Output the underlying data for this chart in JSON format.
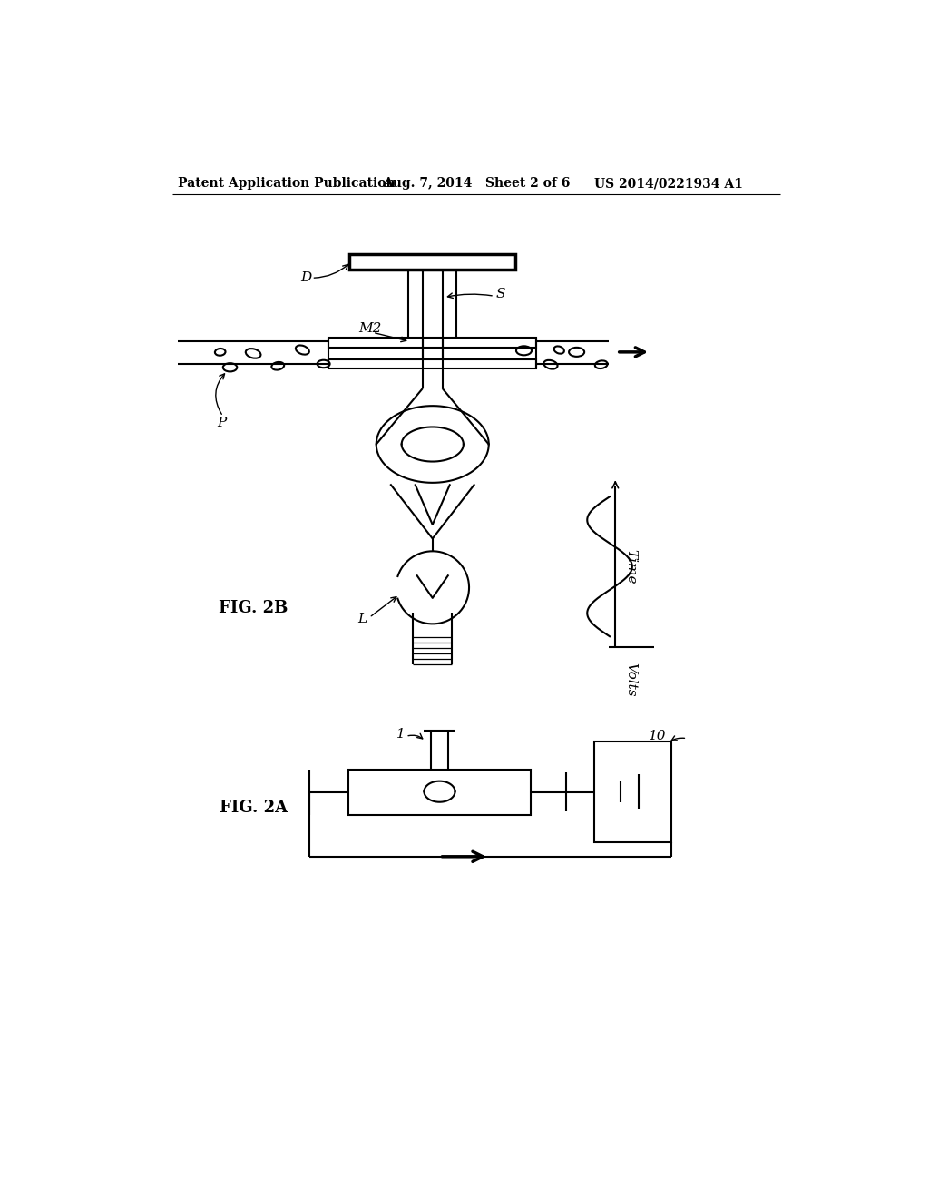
{
  "bg_color": "#ffffff",
  "header_text": "Patent Application Publication",
  "header_date": "Aug. 7, 2014   Sheet 2 of 6",
  "header_patent": "US 2014/0221934 A1",
  "fig2b_label": "FIG. 2B",
  "fig2a_label": "FIG. 2A",
  "label_D": "D",
  "label_S": "S",
  "label_M2": "M2",
  "label_P": "P",
  "label_L": "L",
  "label_Time": "Time",
  "label_Volts": "Volts",
  "label_1": "1",
  "label_10": "10",
  "line_color": "#000000",
  "line_width": 1.5
}
